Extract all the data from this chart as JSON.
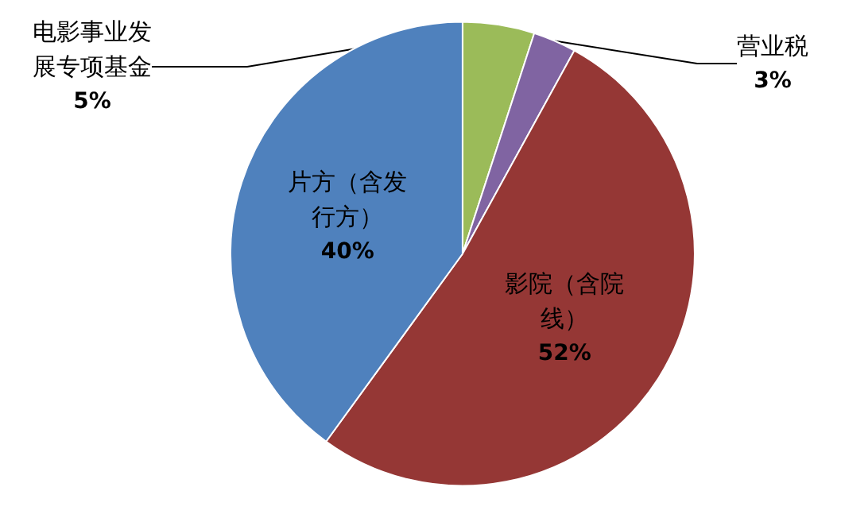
{
  "chart_data": {
    "type": "pie",
    "categories": [
      "电影事业发展专项基金",
      "营业税",
      "影院（含院线）",
      "片方（含发行方）"
    ],
    "values": [
      5,
      3,
      52,
      40
    ],
    "colors": [
      "#9bbb59",
      "#8064a2",
      "#953735",
      "#4f81bd"
    ],
    "value_labels": [
      "5%",
      "3%",
      "52%",
      "40%"
    ],
    "legend": false
  }
}
